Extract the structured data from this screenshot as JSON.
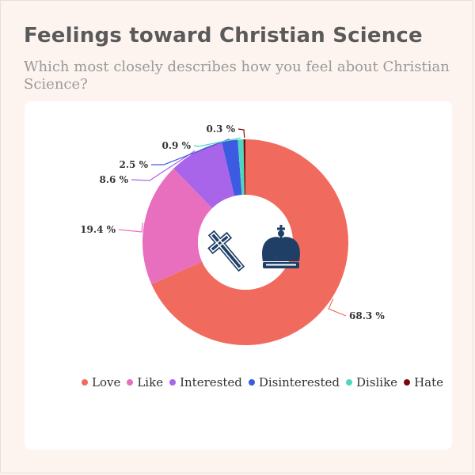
{
  "header": {
    "title": "Feelings toward Christian Science",
    "subtitle": "Which most closely describes how you feel about Christian Science?"
  },
  "colors": {
    "background": "#fdf3ef",
    "card": "#ffffff",
    "title": "#5a5a5a",
    "subtitle": "#9a9a9a",
    "icon": "#1f3f66"
  },
  "center_icon": "cross-and-crown-icon",
  "chart_data": {
    "type": "pie",
    "style": "donut",
    "start": "top",
    "direction": "clockwise",
    "legend_position": "bottom",
    "series": [
      {
        "name": "Love",
        "value": 68.3,
        "label": "68.3 %",
        "color": "#f06b5d"
      },
      {
        "name": "Like",
        "value": 19.4,
        "label": "19.4 %",
        "color": "#e86fbd"
      },
      {
        "name": "Interested",
        "value": 8.6,
        "label": "8.6 %",
        "color": "#a865ea"
      },
      {
        "name": "Disinterested",
        "value": 2.5,
        "label": "2.5 %",
        "color": "#3c5be0"
      },
      {
        "name": "Dislike",
        "value": 0.9,
        "label": "0.9 %",
        "color": "#4fd6c0"
      },
      {
        "name": "Hate",
        "value": 0.3,
        "label": "0.3 %",
        "color": "#7a0a0a"
      }
    ]
  }
}
